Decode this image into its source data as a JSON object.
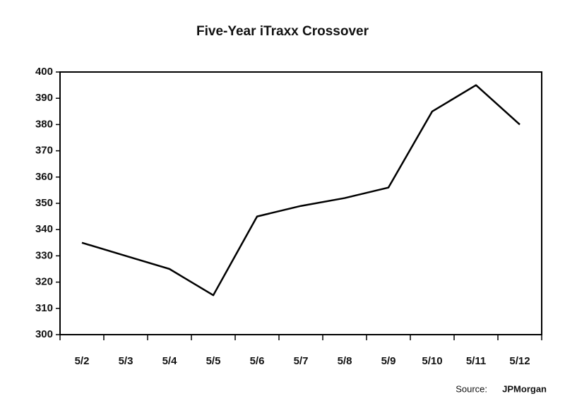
{
  "chart_data": {
    "type": "line",
    "title": "Five-Year iTraxx Crossover",
    "categories": [
      "5/2",
      "5/3",
      "5/4",
      "5/5",
      "5/6",
      "5/7",
      "5/8",
      "5/9",
      "5/10",
      "5/11",
      "5/12"
    ],
    "values": [
      335,
      330,
      325,
      315,
      345,
      349,
      352,
      356,
      385,
      395,
      380
    ],
    "color": "#000000",
    "ylim": [
      300,
      400
    ],
    "yticks": [
      300,
      310,
      320,
      330,
      340,
      350,
      360,
      370,
      380,
      390,
      400
    ],
    "grid": false,
    "source_label": "Source:",
    "source": "JPMorgan"
  }
}
